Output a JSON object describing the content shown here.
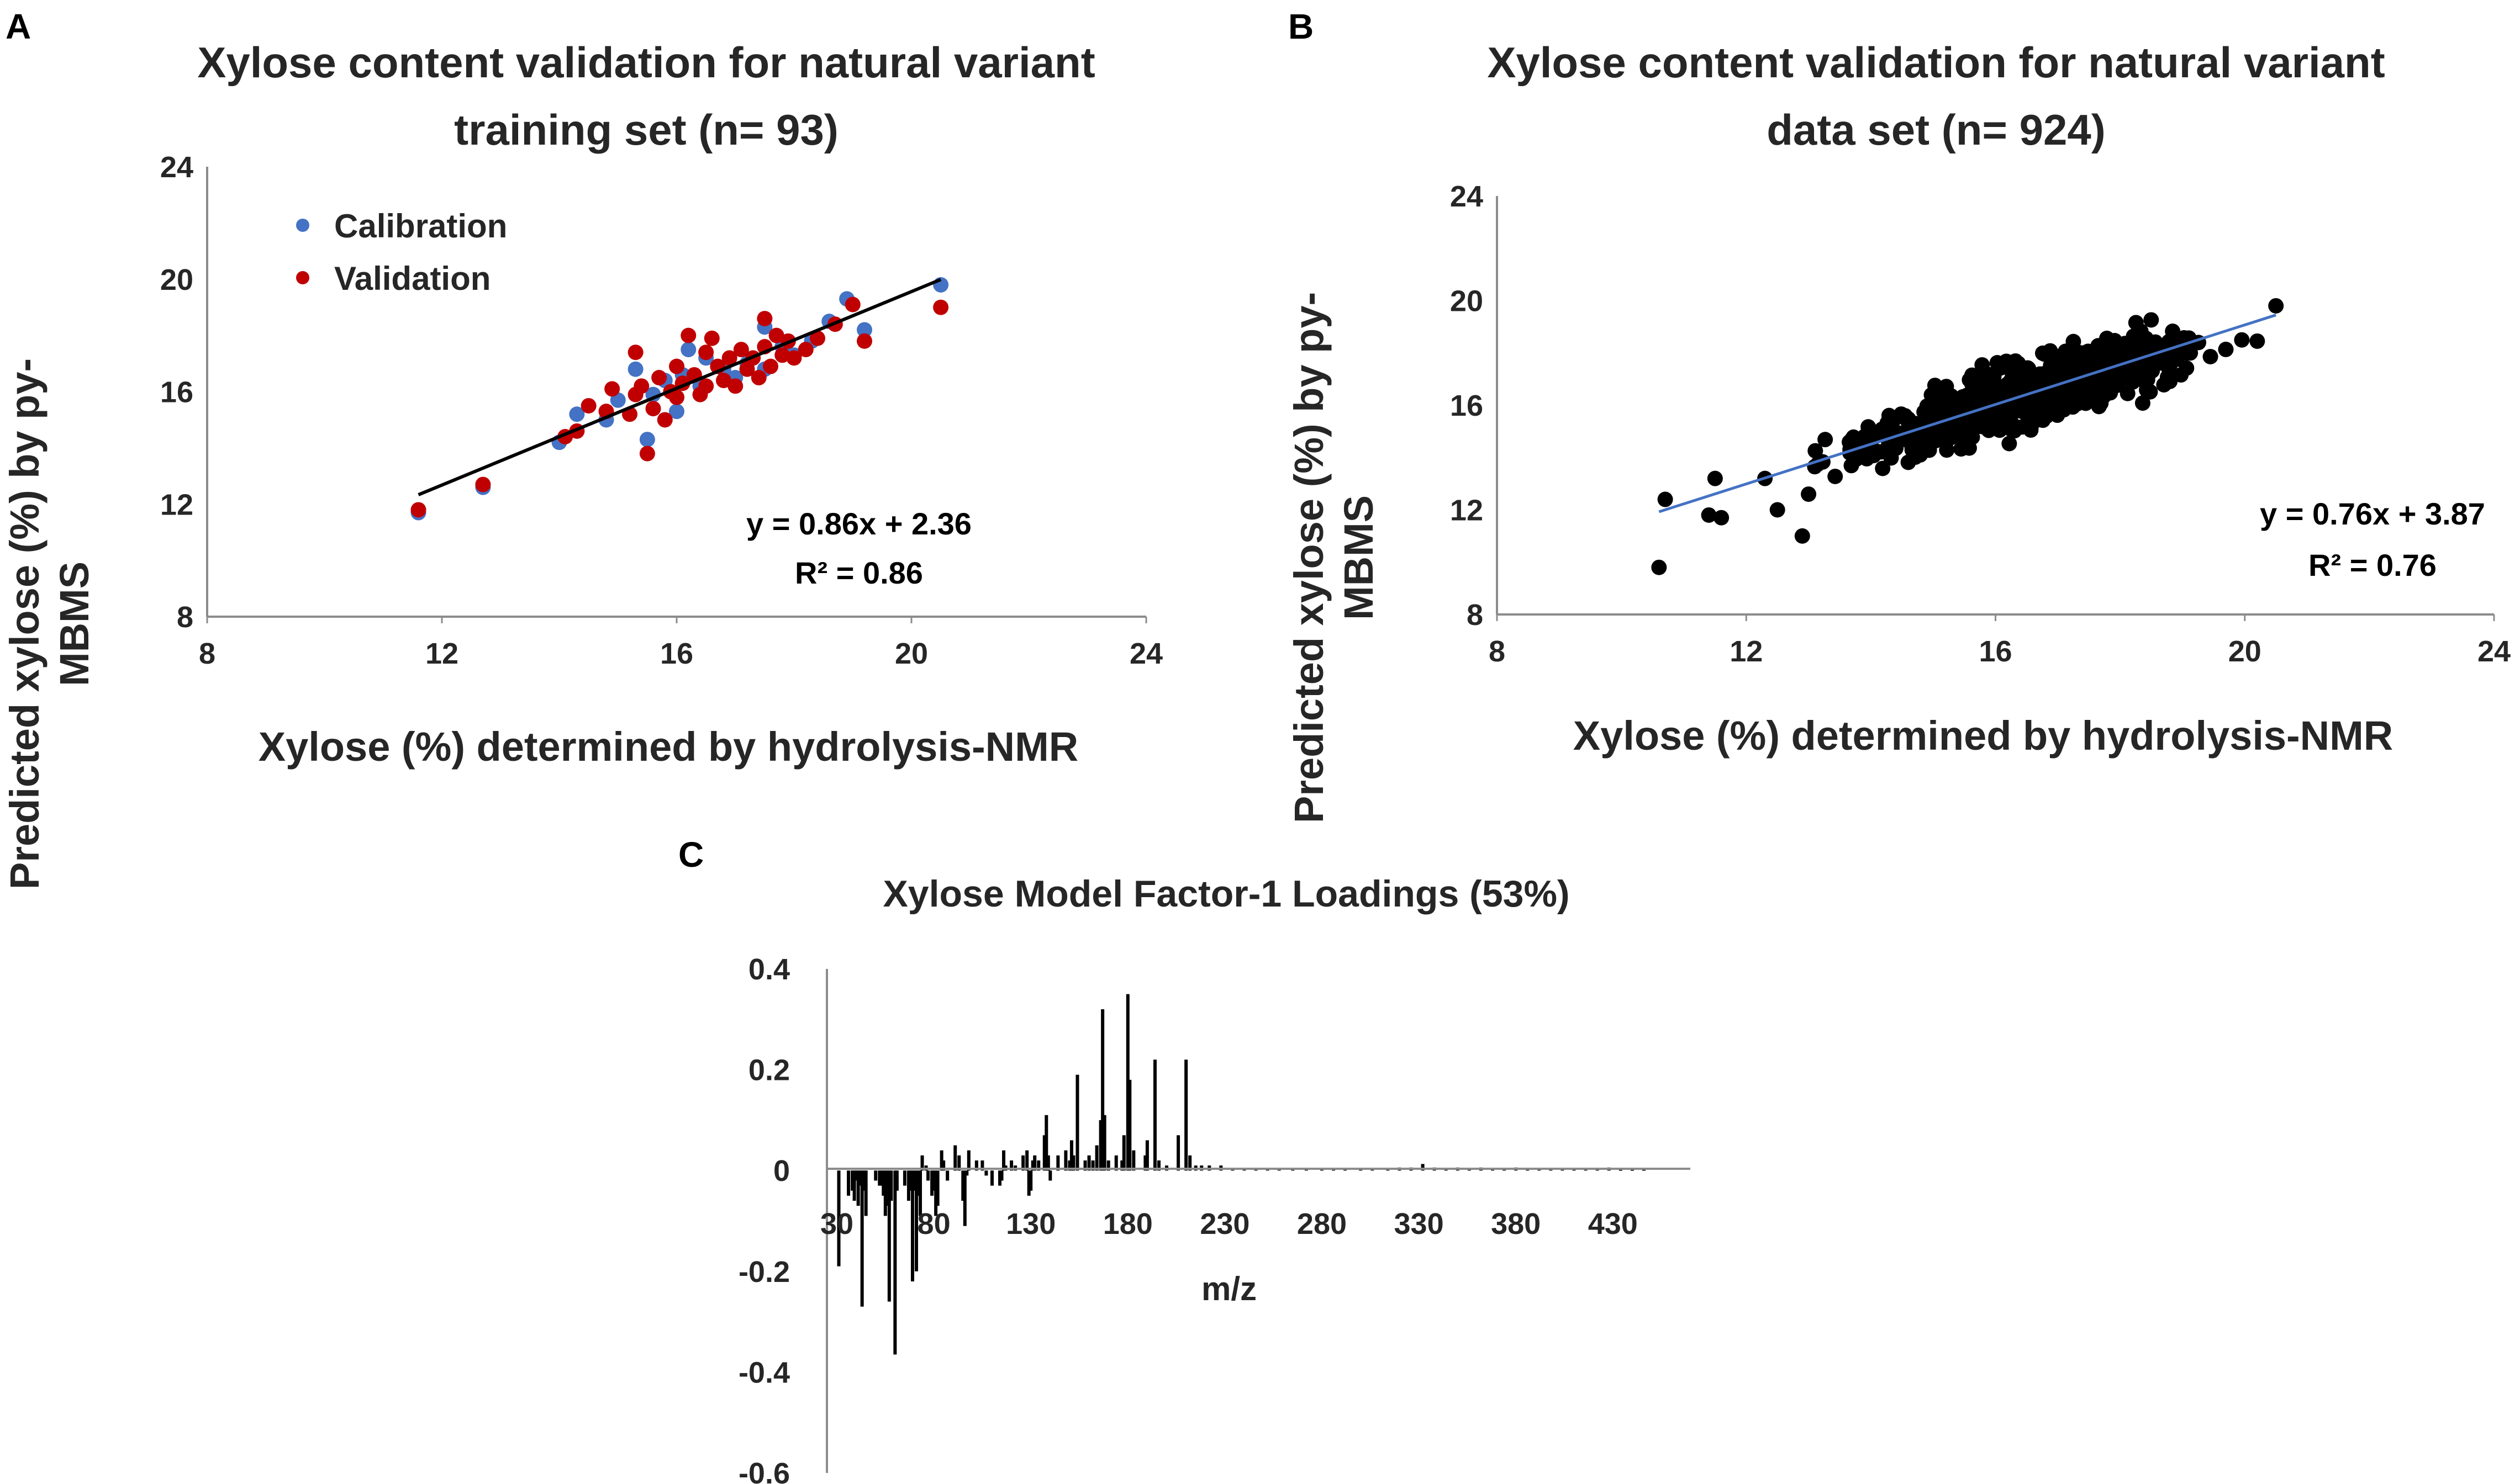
{
  "panels": {
    "a": "A",
    "b": "B",
    "c": "C"
  },
  "colors": {
    "calibration": "#4472C4",
    "validation": "#C00000",
    "points_b": "#000000",
    "fit_a": "#000000",
    "fit_b": "#4472C4",
    "axis": "#8c8c8c",
    "bars": "#000000"
  },
  "chart_data": [
    {
      "id": "A",
      "type": "scatter",
      "title_line1": "Xylose content validation for natural variant",
      "title_line2": "training set (n= 93)",
      "xlabel": "Xylose (%) determined by hydrolysis-NMR",
      "ylabel_line1": "Predicted xylose (%) by py-",
      "ylabel_line2": "MBMS",
      "xlim": [
        8,
        24
      ],
      "ylim": [
        8,
        24
      ],
      "xticks": [
        "8",
        "12",
        "16",
        "20",
        "24"
      ],
      "yticks": [
        "8",
        "12",
        "16",
        "20",
        "24"
      ],
      "legend": [
        "Calibration",
        "Validation"
      ],
      "equation": "y = 0.86x + 2.36",
      "r2": "R² = 0.86",
      "fit": {
        "slope": 0.86,
        "intercept": 2.36,
        "x_range": [
          11.6,
          20.5
        ]
      },
      "series": [
        {
          "name": "Calibration",
          "points": [
            [
              11.6,
              11.7
            ],
            [
              12.7,
              12.6
            ],
            [
              14.0,
              14.2
            ],
            [
              14.3,
              15.2
            ],
            [
              14.8,
              15.0
            ],
            [
              15.0,
              15.7
            ],
            [
              15.3,
              16.8
            ],
            [
              15.5,
              14.3
            ],
            [
              15.6,
              15.9
            ],
            [
              15.8,
              16.4
            ],
            [
              16.0,
              15.3
            ],
            [
              16.1,
              16.6
            ],
            [
              16.2,
              17.5
            ],
            [
              16.4,
              16.2
            ],
            [
              16.5,
              17.2
            ],
            [
              16.8,
              16.8
            ],
            [
              17.0,
              16.5
            ],
            [
              17.2,
              17.0
            ],
            [
              17.5,
              16.8
            ],
            [
              17.5,
              18.3
            ],
            [
              17.8,
              17.6
            ],
            [
              18.0,
              17.3
            ],
            [
              18.3,
              17.8
            ],
            [
              18.6,
              18.5
            ],
            [
              18.9,
              19.3
            ],
            [
              19.2,
              18.2
            ],
            [
              20.5,
              19.8
            ]
          ]
        },
        {
          "name": "Validation",
          "points": [
            [
              11.6,
              11.8
            ],
            [
              12.7,
              12.7
            ],
            [
              14.1,
              14.4
            ],
            [
              14.3,
              14.6
            ],
            [
              14.5,
              15.5
            ],
            [
              14.8,
              15.3
            ],
            [
              14.9,
              16.1
            ],
            [
              15.2,
              15.2
            ],
            [
              15.3,
              17.4
            ],
            [
              15.3,
              15.9
            ],
            [
              15.4,
              16.2
            ],
            [
              15.5,
              13.8
            ],
            [
              15.6,
              15.4
            ],
            [
              15.7,
              16.5
            ],
            [
              15.8,
              15.0
            ],
            [
              15.9,
              16.0
            ],
            [
              16.0,
              15.8
            ],
            [
              16.0,
              16.9
            ],
            [
              16.1,
              16.3
            ],
            [
              16.2,
              18.0
            ],
            [
              16.3,
              16.6
            ],
            [
              16.4,
              15.9
            ],
            [
              16.5,
              17.4
            ],
            [
              16.5,
              16.2
            ],
            [
              16.6,
              17.9
            ],
            [
              16.7,
              16.9
            ],
            [
              16.8,
              16.4
            ],
            [
              16.9,
              17.2
            ],
            [
              17.0,
              16.2
            ],
            [
              17.1,
              17.5
            ],
            [
              17.2,
              16.8
            ],
            [
              17.3,
              17.2
            ],
            [
              17.4,
              16.5
            ],
            [
              17.5,
              18.6
            ],
            [
              17.5,
              17.6
            ],
            [
              17.6,
              16.9
            ],
            [
              17.7,
              18.0
            ],
            [
              17.8,
              17.3
            ],
            [
              17.9,
              17.8
            ],
            [
              18.0,
              17.2
            ],
            [
              18.2,
              17.5
            ],
            [
              18.4,
              17.9
            ],
            [
              18.7,
              18.4
            ],
            [
              19.0,
              19.1
            ],
            [
              19.2,
              17.8
            ],
            [
              20.5,
              19.0
            ]
          ]
        }
      ]
    },
    {
      "id": "B",
      "type": "scatter",
      "title_line1": "Xylose content validation for natural variant",
      "title_line2": "data set (n= 924)",
      "xlabel": "Xylose (%) determined by hydrolysis-NMR",
      "ylabel_line1": "Predicted xylose (%) by py-",
      "ylabel_line2": "MBMS",
      "xlim": [
        8,
        24
      ],
      "ylim": [
        8,
        24
      ],
      "xticks": [
        "8",
        "12",
        "16",
        "20",
        "24"
      ],
      "yticks": [
        "8",
        "12",
        "16",
        "20",
        "24"
      ],
      "equation": "y = 0.76x + 3.87",
      "r2": "R² = 0.76",
      "n": 924,
      "fit": {
        "slope": 0.76,
        "intercept": 3.87,
        "x_range": [
          10.6,
          20.5
        ]
      },
      "outliers": [
        [
          10.6,
          9.8
        ],
        [
          10.7,
          12.4
        ],
        [
          11.4,
          11.8
        ],
        [
          11.5,
          13.2
        ],
        [
          11.6,
          11.7
        ],
        [
          12.3,
          13.2
        ],
        [
          12.5,
          12.0
        ],
        [
          12.9,
          11.0
        ],
        [
          13.0,
          12.6
        ],
        [
          20.5,
          19.8
        ]
      ]
    },
    {
      "id": "C",
      "type": "bar",
      "title": "Xylose Model Factor-1 Loadings (53%)",
      "xlabel": "m/z",
      "ylim": [
        -0.6,
        0.4
      ],
      "yticks": [
        "0.4",
        "0.2",
        "0",
        "-0.2",
        "-0.4",
        "-0.6"
      ],
      "xlim": [
        30,
        450
      ],
      "xticks": [
        "30",
        "80",
        "130",
        "180",
        "230",
        "280",
        "330",
        "380",
        "430"
      ],
      "bars": [
        [
          31,
          -0.19
        ],
        [
          36,
          -0.05
        ],
        [
          38,
          -0.04
        ],
        [
          39,
          -0.06
        ],
        [
          40,
          -0.02
        ],
        [
          41,
          -0.07
        ],
        [
          42,
          -0.03
        ],
        [
          43,
          -0.27
        ],
        [
          44,
          -0.04
        ],
        [
          45,
          -0.09
        ],
        [
          50,
          -0.02
        ],
        [
          52,
          -0.03
        ],
        [
          53,
          -0.03
        ],
        [
          54,
          -0.05
        ],
        [
          55,
          -0.09
        ],
        [
          56,
          -0.07
        ],
        [
          57,
          -0.26
        ],
        [
          58,
          -0.06
        ],
        [
          60,
          -0.365
        ],
        [
          61,
          -0.04
        ],
        [
          65,
          -0.03
        ],
        [
          67,
          -0.06
        ],
        [
          68,
          -0.04
        ],
        [
          69,
          -0.22
        ],
        [
          70,
          -0.04
        ],
        [
          71,
          -0.2
        ],
        [
          72,
          -0.05
        ],
        [
          73,
          -0.09
        ],
        [
          74,
          0.03
        ],
        [
          76,
          0.01
        ],
        [
          77,
          -0.02
        ],
        [
          79,
          -0.05
        ],
        [
          80,
          -0.04
        ],
        [
          81,
          -0.09
        ],
        [
          82,
          -0.07
        ],
        [
          84,
          0.04
        ],
        [
          85,
          0.02
        ],
        [
          87,
          -0.02
        ],
        [
          91,
          0.05
        ],
        [
          93,
          0.03
        ],
        [
          95,
          -0.06
        ],
        [
          96,
          -0.11
        ],
        [
          97,
          -0.01
        ],
        [
          98,
          0.04
        ],
        [
          102,
          0.02
        ],
        [
          105,
          0.02
        ],
        [
          107,
          -0.01
        ],
        [
          110,
          -0.03
        ],
        [
          114,
          -0.03
        ],
        [
          115,
          -0.02
        ],
        [
          116,
          0.04
        ],
        [
          117,
          0.01
        ],
        [
          120,
          0.02
        ],
        [
          122,
          0.01
        ],
        [
          126,
          0.03
        ],
        [
          128,
          0.04
        ],
        [
          129,
          -0.05
        ],
        [
          130,
          -0.04
        ],
        [
          131,
          0.02
        ],
        [
          132,
          0.03
        ],
        [
          134,
          0.02
        ],
        [
          137,
          0.07
        ],
        [
          138,
          0.11
        ],
        [
          139,
          0.03
        ],
        [
          140,
          -0.02
        ],
        [
          144,
          0.03
        ],
        [
          148,
          0.04
        ],
        [
          150,
          0.02
        ],
        [
          151,
          0.06
        ],
        [
          152,
          0.03
        ],
        [
          154,
          0.19
        ],
        [
          158,
          0.02
        ],
        [
          160,
          0.03
        ],
        [
          162,
          0.02
        ],
        [
          164,
          0.05
        ],
        [
          166,
          0.1
        ],
        [
          167,
          0.32
        ],
        [
          168,
          0.11
        ],
        [
          170,
          0.02
        ],
        [
          174,
          0.03
        ],
        [
          177,
          0.02
        ],
        [
          178,
          0.07
        ],
        [
          180,
          0.35
        ],
        [
          181,
          0.18
        ],
        [
          183,
          0.04
        ],
        [
          189,
          0.03
        ],
        [
          190,
          0.06
        ],
        [
          194,
          0.22
        ],
        [
          196,
          0.02
        ],
        [
          200,
          0.01
        ],
        [
          206,
          0.07
        ],
        [
          210,
          0.22
        ],
        [
          212,
          0.03
        ],
        [
          215,
          0.01
        ],
        [
          218,
          0.01
        ],
        [
          222,
          0.01
        ],
        [
          228,
          0.01
        ],
        [
          234,
          0.005
        ],
        [
          240,
          0.005
        ],
        [
          246,
          0.005
        ],
        [
          252,
          0.005
        ],
        [
          258,
          0.004
        ],
        [
          265,
          0.004
        ],
        [
          272,
          0.004
        ],
        [
          280,
          0.005
        ],
        [
          286,
          0.004
        ],
        [
          292,
          0.004
        ],
        [
          300,
          0.005
        ],
        [
          306,
          0.005
        ],
        [
          314,
          0.004
        ],
        [
          320,
          0.006
        ],
        [
          326,
          0.006
        ],
        [
          332,
          0.013
        ],
        [
          338,
          0.006
        ],
        [
          344,
          0.004
        ],
        [
          350,
          0.006
        ],
        [
          356,
          0.005
        ],
        [
          362,
          0.006
        ],
        [
          368,
          0.004
        ],
        [
          374,
          0.005
        ],
        [
          380,
          0.006
        ],
        [
          386,
          0.004
        ],
        [
          392,
          0.005
        ],
        [
          398,
          0.004
        ],
        [
          404,
          0.004
        ],
        [
          410,
          0.004
        ],
        [
          416,
          0.004
        ],
        [
          422,
          0.005
        ],
        [
          428,
          0.006
        ],
        [
          434,
          0.003
        ],
        [
          440,
          0.003
        ],
        [
          446,
          0.003
        ]
      ]
    }
  ]
}
